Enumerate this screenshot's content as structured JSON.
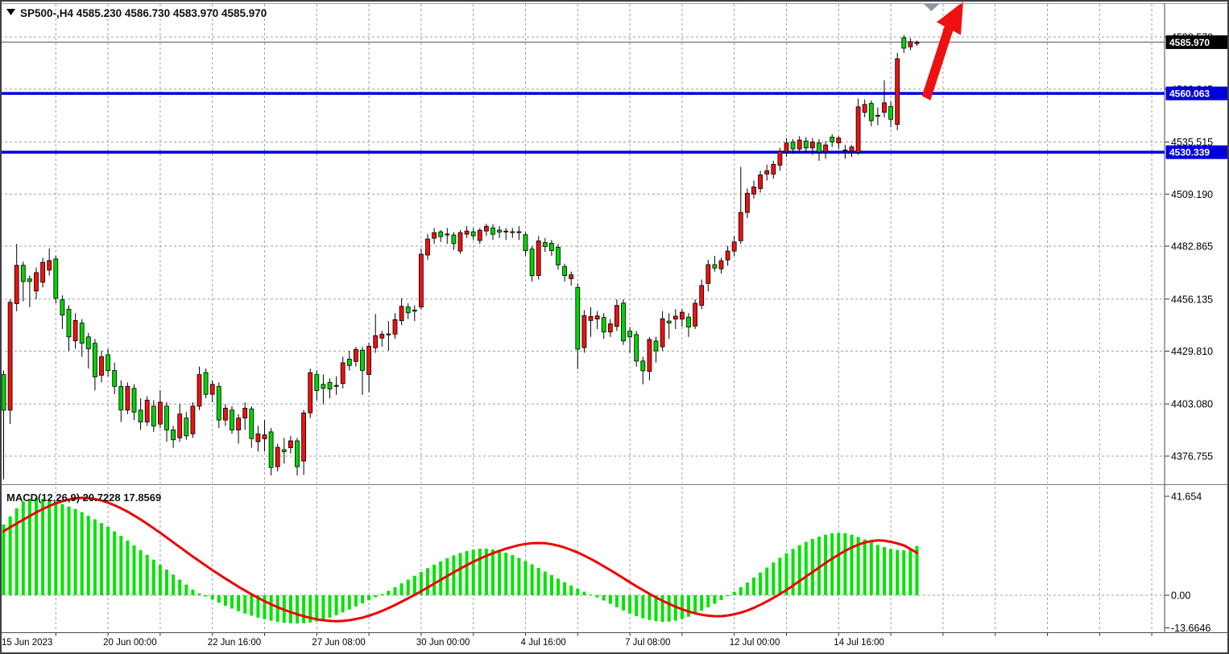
{
  "header": {
    "display": "SP500-,H4  4585.230 4586.730 4583.970 4585.970",
    "symbol": "SP500-",
    "timeframe": "H4",
    "open": "4585.230",
    "high": "4586.730",
    "low": "4583.970",
    "close": "4585.970"
  },
  "indicator_header": {
    "display": "MACD(12,26,9) 20.7228 17.8569",
    "name": "MACD",
    "params": "12,26,9",
    "macd_value": "20.7228",
    "signal_value": "17.8569"
  },
  "icons": {
    "symbol_dropdown": "triangle-down",
    "chart_shift_marker": "triangle-down"
  },
  "price_axis": {
    "ticks": [
      "4588.570",
      "4562.245",
      "4535.515",
      "4509.190",
      "4482.865",
      "4456.135",
      "4429.810",
      "4403.080",
      "4376.755"
    ],
    "current_price_label": "4585.970",
    "level_labels": [
      "4560.063",
      "4530.339"
    ]
  },
  "macd_axis": {
    "ticks": [
      "41.654",
      "0.00",
      "-13.6646"
    ]
  },
  "time_axis": {
    "labels": [
      {
        "text": "15 Jun 2023",
        "index": 0
      },
      {
        "text": "20 Jun 00:00",
        "index": 16
      },
      {
        "text": "22 Jun 16:00",
        "index": 32
      },
      {
        "text": "27 Jun 08:00",
        "index": 48
      },
      {
        "text": "30 Jun 00:00",
        "index": 64
      },
      {
        "text": "4 Jul 16:00",
        "index": 80
      },
      {
        "text": "7 Jul 08:00",
        "index": 96
      },
      {
        "text": "12 Jul 00:00",
        "index": 112
      },
      {
        "text": "14 Jul 16:00",
        "index": 128
      }
    ]
  },
  "colors": {
    "bull_candle": "#ee1111",
    "bear_candle": "#00d400",
    "candle_outline": "#000000",
    "macd_histogram": "#00e400",
    "macd_signal": "#ee0000",
    "level_line": "#0000dc",
    "current_price_line": "#8a8a8a",
    "current_price_box": "#000000",
    "grid": "#98a0b0",
    "arrow": "#ed1111",
    "marker": "#8f99a3"
  },
  "chart_data": [
    {
      "type": "candlestick",
      "title": "SP500- H4",
      "timeframe": "H4",
      "grid": "dashed",
      "grid_index_step": 8,
      "bars_visible": 141,
      "ylim": [
        4360,
        4592
      ],
      "y_ticks": [
        4588.57,
        4562.245,
        4535.515,
        4509.19,
        4482.865,
        4456.135,
        4429.81,
        4403.08,
        4376.755
      ],
      "hlines": [
        {
          "value": 4560.063,
          "label": "4560.063"
        },
        {
          "value": 4530.339,
          "label": "4530.339"
        }
      ],
      "current_price": 4585.97,
      "annotations": [
        {
          "type": "arrow-up",
          "description": "red up-trend arrow from resistance 4560 level to top of chart near latest bars"
        }
      ],
      "candles": [
        [
          4418,
          4420,
          4365,
          4400
        ],
        [
          4400,
          4456,
          4393,
          4454.5
        ],
        [
          4453.8,
          4484,
          4450,
          4473.2
        ],
        [
          4473.2,
          4475,
          4455,
          4465
        ],
        [
          4466.3,
          4468,
          4452,
          4465
        ],
        [
          4460.2,
          4472,
          4456,
          4469.5
        ],
        [
          4464.6,
          4477,
          4462,
          4474.7
        ],
        [
          4470.8,
          4481.7,
          4468,
          4475.6
        ],
        [
          4476.4,
          4478,
          4454,
          4456.5
        ],
        [
          4455.7,
          4458,
          4441,
          4448
        ],
        [
          4451,
          4453,
          4430,
          4437
        ],
        [
          4435,
          4449,
          4431,
          4445.3
        ],
        [
          4444,
          4446,
          4427,
          4433.8
        ],
        [
          4437,
          4439,
          4421,
          4431
        ],
        [
          4433.8,
          4436,
          4410,
          4416.8
        ],
        [
          4417.6,
          4430,
          4414,
          4427
        ],
        [
          4428,
          4431,
          4417,
          4420
        ],
        [
          4420,
          4424,
          4408,
          4412
        ],
        [
          4412,
          4415,
          4394,
          4400
        ],
        [
          4400,
          4414,
          4398,
          4412
        ],
        [
          4411,
          4413,
          4395,
          4399
        ],
        [
          4400,
          4406,
          4390,
          4394
        ],
        [
          4394,
          4407,
          4392,
          4405
        ],
        [
          4402,
          4405,
          4389,
          4392
        ],
        [
          4393,
          4410,
          4391,
          4404
        ],
        [
          4402,
          4404,
          4384,
          4390
        ],
        [
          4390,
          4392,
          4381,
          4385
        ],
        [
          4386,
          4403,
          4384,
          4398
        ],
        [
          4396,
          4399,
          4385,
          4387
        ],
        [
          4388,
          4404,
          4386,
          4402
        ],
        [
          4402,
          4422,
          4400,
          4418
        ],
        [
          4419,
          4421,
          4406,
          4408
        ],
        [
          4408,
          4415,
          4404,
          4413
        ],
        [
          4412,
          4414,
          4391,
          4395
        ],
        [
          4395,
          4403,
          4392,
          4401
        ],
        [
          4400,
          4402,
          4388,
          4390
        ],
        [
          4390,
          4398,
          4383,
          4396
        ],
        [
          4396,
          4404,
          4390,
          4401
        ],
        [
          4400.6,
          4402,
          4381,
          4385.6
        ],
        [
          4384,
          4392,
          4379,
          4388
        ],
        [
          4385.5,
          4395,
          4379,
          4387.5
        ],
        [
          4389,
          4391,
          4367,
          4371
        ],
        [
          4371.4,
          4383,
          4369,
          4381.2
        ],
        [
          4380,
          4386,
          4373,
          4379
        ],
        [
          4381,
          4387,
          4378,
          4384.5
        ],
        [
          4384.5,
          4386,
          4367,
          4371.4
        ],
        [
          4374.3,
          4400,
          4367.3,
          4398.6
        ],
        [
          4398.6,
          4421,
          4396,
          4418.9
        ],
        [
          4418,
          4420,
          4405,
          4409.9
        ],
        [
          4413,
          4418,
          4403,
          4411
        ],
        [
          4414,
          4416,
          4406,
          4410.7
        ],
        [
          4412,
          4417,
          4407.7,
          4412.5
        ],
        [
          4413.4,
          4427,
          4411,
          4423.9
        ],
        [
          4425.8,
          4430,
          4420,
          4422.6
        ],
        [
          4424.6,
          4432,
          4422,
          4430.7
        ],
        [
          4430.3,
          4432,
          4407.7,
          4420.1
        ],
        [
          4418,
          4434,
          4409,
          4432.3
        ],
        [
          4431.5,
          4448.6,
          4429,
          4437.6
        ],
        [
          4436.4,
          4440,
          4432,
          4438.4
        ],
        [
          4438,
          4445,
          4430,
          4438.5
        ],
        [
          4438.4,
          4449,
          4436,
          4445.7
        ],
        [
          4445.2,
          4456.6,
          4443,
          4452.5
        ],
        [
          4452.1,
          4454,
          4446,
          4449.2
        ],
        [
          4450,
          4453,
          4445,
          4450.5
        ],
        [
          4452.1,
          4481.6,
          4451,
          4478.8
        ],
        [
          4478.4,
          4489,
          4476,
          4486.5
        ],
        [
          4486.9,
          4492,
          4484,
          4489.7
        ],
        [
          4490.1,
          4491,
          4485,
          4487.7
        ],
        [
          4488.5,
          4492,
          4484,
          4489
        ],
        [
          4488.5,
          4490,
          4481,
          4484.1
        ],
        [
          4480.4,
          4491,
          4479,
          4489.7
        ],
        [
          4488.9,
          4493,
          4487,
          4490.5
        ],
        [
          4490.1,
          4492,
          4486,
          4488.1
        ],
        [
          4485.7,
          4492,
          4484,
          4490.9
        ],
        [
          4490.5,
          4494.2,
          4488,
          4492.9
        ],
        [
          4492.1,
          4494,
          4486,
          4488.9
        ],
        [
          4491,
          4493,
          4487,
          4490
        ],
        [
          4490,
          4492,
          4486,
          4490.5
        ],
        [
          4490.2,
          4492,
          4487,
          4489.8
        ],
        [
          4489.8,
          4493,
          4486,
          4490.2
        ],
        [
          4488.7,
          4490,
          4478,
          4480.6
        ],
        [
          4481.4,
          4483,
          4465,
          4468
        ],
        [
          4468,
          4488,
          4466,
          4485.5
        ],
        [
          4484.7,
          4487,
          4480,
          4482.7
        ],
        [
          4484.3,
          4486,
          4478,
          4480.6
        ],
        [
          4482.3,
          4484,
          4471,
          4473.4
        ],
        [
          4472.6,
          4474,
          4465,
          4468
        ],
        [
          4466.4,
          4470,
          4463,
          4468.4
        ],
        [
          4462,
          4464,
          4420.8,
          4430.8
        ],
        [
          4431.6,
          4450.5,
          4429,
          4447.8
        ],
        [
          4445.3,
          4452,
          4437,
          4447.3
        ],
        [
          4446,
          4450,
          4441,
          4447.6
        ],
        [
          4446.8,
          4449,
          4436,
          4439.5
        ],
        [
          4439.5,
          4446,
          4437,
          4443.6
        ],
        [
          4442.3,
          4456,
          4440,
          4452.9
        ],
        [
          4454.1,
          4456,
          4433,
          4435
        ],
        [
          4439.9,
          4442,
          4429,
          4437
        ],
        [
          4438.2,
          4440,
          4422,
          4424.8
        ],
        [
          4424.8,
          4427,
          4413,
          4419.9
        ],
        [
          4419.5,
          4437,
          4415,
          4435.7
        ],
        [
          4434.9,
          4437,
          4424,
          4430
        ],
        [
          4432,
          4450,
          4430,
          4446.2
        ],
        [
          4445,
          4449,
          4436,
          4444
        ],
        [
          4446,
          4451,
          4441,
          4447.5
        ],
        [
          4446,
          4451,
          4442,
          4449.5
        ],
        [
          4447,
          4449,
          4437,
          4442
        ],
        [
          4442.5,
          4456,
          4441,
          4454
        ],
        [
          4453,
          4466,
          4451,
          4463
        ],
        [
          4464,
          4476,
          4460,
          4473.5
        ],
        [
          4473.5,
          4478,
          4470,
          4471.8
        ],
        [
          4471.4,
          4477,
          4469,
          4475.5
        ],
        [
          4475.9,
          4483,
          4473,
          4480.4
        ],
        [
          4480.4,
          4488,
          4478,
          4485
        ],
        [
          4485.6,
          4522.9,
          4484,
          4499.9
        ],
        [
          4499.9,
          4512,
          4497,
          4509.6
        ],
        [
          4509.2,
          4516,
          4507,
          4512.8
        ],
        [
          4512,
          4521,
          4510,
          4518.9
        ],
        [
          4519.3,
          4524,
          4516,
          4521
        ],
        [
          4519.3,
          4526,
          4517,
          4524.2
        ],
        [
          4523.8,
          4532.5,
          4521,
          4530.7
        ],
        [
          4530.5,
          4537.5,
          4528,
          4535
        ],
        [
          4535.5,
          4537,
          4529.5,
          4532
        ],
        [
          4532,
          4538.5,
          4530,
          4536.5
        ],
        [
          4536,
          4538,
          4530,
          4532.5
        ],
        [
          4532.5,
          4537.5,
          4529,
          4535.5
        ],
        [
          4535,
          4537,
          4526,
          4530.5
        ],
        [
          4530.5,
          4536,
          4527,
          4534
        ],
        [
          4538,
          4539.5,
          4533,
          4535.5
        ],
        [
          4535,
          4538.5,
          4532,
          4537.5
        ],
        [
          4531.5,
          4534,
          4527,
          4531
        ],
        [
          4530.8,
          4534,
          4528,
          4533
        ],
        [
          4530.2,
          4557.4,
          4529,
          4553.3
        ],
        [
          4550.5,
          4557,
          4548,
          4554.5
        ],
        [
          4555,
          4556.5,
          4543.5,
          4546.3
        ],
        [
          4549,
          4553,
          4544,
          4548.5
        ],
        [
          4550.5,
          4566.7,
          4548,
          4555.3
        ],
        [
          4553.5,
          4556,
          4543,
          4547
        ],
        [
          4544.4,
          4580.5,
          4541.5,
          4577.6
        ],
        [
          4588.2,
          4589.6,
          4580.5,
          4582.9
        ],
        [
          4583.6,
          4588,
          4582,
          4586.2
        ],
        [
          4585.23,
          4586.73,
          4583.97,
          4585.97
        ]
      ]
    },
    {
      "type": "bar",
      "subtype": "macd-histogram-with-signal-line",
      "name": "MACD(12,26,9)",
      "y_ticks": [
        41.654,
        0.0,
        -13.6646
      ],
      "current_values": {
        "macd": 20.7228,
        "signal": 17.8569
      },
      "histogram": [
        29.8,
        33.2,
        36.6,
        39.6,
        40.6,
        41.0,
        40.6,
        40.0,
        39.3,
        38.4,
        37.4,
        36.3,
        35.0,
        33.5,
        32.0,
        30.4,
        28.8,
        26.9,
        25.0,
        23.0,
        21.0,
        19.0,
        17.0,
        15.0,
        12.9,
        10.8,
        8.7,
        6.6,
        4.5,
        2.4,
        0.8,
        -0.5,
        -1.8,
        -3.1,
        -4.4,
        -5.6,
        -6.7,
        -7.7,
        -8.6,
        -9.4,
        -10.1,
        -10.7,
        -11.2,
        -11.6,
        -11.8,
        -11.9,
        -11.8,
        -11.5,
        -11.0,
        -10.3,
        -9.4,
        -8.4,
        -7.2,
        -6.0,
        -4.7,
        -3.4,
        -2.1,
        -0.8,
        0.5,
        1.9,
        3.4,
        5.0,
        6.6,
        8.2,
        9.8,
        11.4,
        12.9,
        14.3,
        15.6,
        16.8,
        17.8,
        18.6,
        19.2,
        19.6,
        19.6,
        19.3,
        18.7,
        17.9,
        16.9,
        15.7,
        14.4,
        13.0,
        11.5,
        10.0,
        8.5,
        7.0,
        5.5,
        4.1,
        2.8,
        1.5,
        0.3,
        -0.9,
        -2.2,
        -3.6,
        -5.0,
        -6.4,
        -7.7,
        -8.8,
        -9.7,
        -10.4,
        -10.9,
        -11.2,
        -11.1,
        -10.7,
        -10.0,
        -9.0,
        -7.8,
        -6.5,
        -5.1,
        -3.6,
        -2.0,
        -0.3,
        1.5,
        3.4,
        5.4,
        7.5,
        9.6,
        11.7,
        13.8,
        15.8,
        17.7,
        19.5,
        21.1,
        22.5,
        23.7,
        24.7,
        25.5,
        26.1,
        26.3,
        26.1,
        25.5,
        24.6,
        23.5,
        22.3,
        21.2,
        20.3,
        19.6,
        19.1,
        18.9,
        19.6,
        20.7228
      ],
      "signal": [
        27.0,
        28.6,
        30.2,
        31.8,
        33.4,
        34.9,
        36.3,
        37.6,
        38.7,
        39.6,
        40.3,
        40.8,
        41.0,
        40.9,
        40.5,
        39.9,
        39.0,
        37.9,
        36.6,
        35.2,
        33.6,
        31.9,
        30.1,
        28.2,
        26.3,
        24.3,
        22.3,
        20.3,
        18.3,
        16.3,
        14.4,
        12.5,
        10.6,
        8.8,
        7.0,
        5.3,
        3.6,
        2.0,
        0.4,
        -1.1,
        -2.5,
        -3.8,
        -5.0,
        -6.1,
        -7.1,
        -8.0,
        -8.8,
        -9.5,
        -10.1,
        -10.5,
        -10.8,
        -10.9,
        -10.8,
        -10.5,
        -10.0,
        -9.4,
        -8.6,
        -7.7,
        -6.6,
        -5.4,
        -4.1,
        -2.7,
        -1.3,
        0.2,
        1.7,
        3.3,
        4.9,
        6.5,
        8.1,
        9.7,
        11.2,
        12.7,
        14.1,
        15.4,
        16.6,
        17.7,
        18.7,
        19.6,
        20.4,
        21.1,
        21.6,
        21.9,
        22.0,
        21.9,
        21.5,
        20.9,
        20.1,
        19.1,
        18.0,
        16.7,
        15.3,
        13.8,
        12.2,
        10.6,
        8.9,
        7.2,
        5.5,
        3.8,
        2.2,
        0.6,
        -0.9,
        -2.3,
        -3.6,
        -4.8,
        -5.9,
        -6.8,
        -7.6,
        -8.2,
        -8.6,
        -8.8,
        -8.8,
        -8.5,
        -8.0,
        -7.3,
        -6.4,
        -5.3,
        -4.0,
        -2.6,
        -1.1,
        0.5,
        2.2,
        4.1,
        6.0,
        7.9,
        9.8,
        11.7,
        13.6,
        15.4,
        17.1,
        18.7,
        20.1,
        21.3,
        22.2,
        22.8,
        23.1,
        23.0,
        22.5,
        21.8,
        21.0,
        19.5,
        17.8569
      ]
    }
  ]
}
